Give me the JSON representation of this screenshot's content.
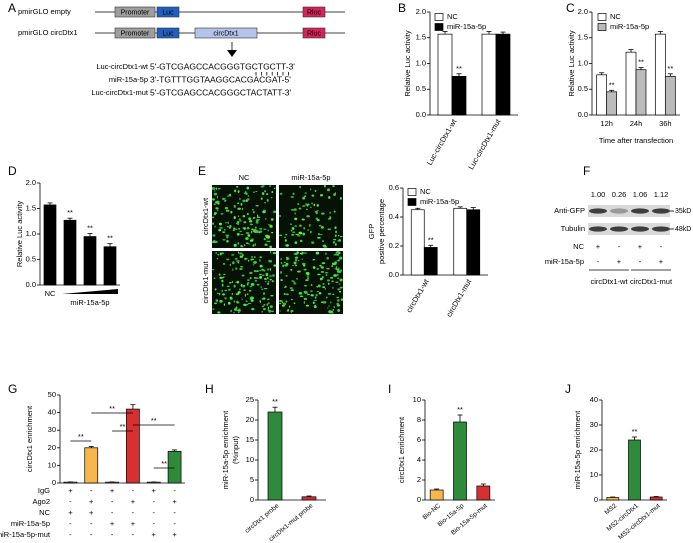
{
  "construct_panel": {
    "label": "A",
    "rows": [
      {
        "name": "pmirGLO empty",
        "elements": [
          "Promoter",
          "Luc",
          "Rluc"
        ]
      },
      {
        "name": "pmirGLO circDtx1",
        "elements": [
          "Promoter",
          "Luc",
          "circDtx1",
          "Rluc"
        ]
      }
    ],
    "sequences": [
      {
        "name": "Luc-circDtx1-wt",
        "seq": "5'-GTCGAGCCACGGGTGCTGCTT-3'"
      },
      {
        "name": "miR-15a-5p",
        "seq": "3'-TGTTTGGTAAGGCACGACGAT-5'"
      },
      {
        "name": "Luc-circDtx1-mut",
        "seq": "5'-GTCGAGCCACGGGCTACTATT-3'"
      }
    ]
  },
  "imaging_panel": {
    "label": "E",
    "columns": [
      "NC",
      "miR-15a-5p"
    ],
    "rows": [
      "circDtx1-wt",
      "circDtx1-mut"
    ]
  },
  "blot_panel": {
    "label": "F",
    "values": [
      "1.00",
      "0.26",
      "1.06",
      "1.12"
    ],
    "bands": [
      {
        "name": "Anti-GFP",
        "size": "35kD"
      },
      {
        "name": "Tubulin",
        "size": "48kD"
      }
    ],
    "conditions": [
      {
        "name": "NC",
        "signs": [
          "+",
          "-",
          "+",
          "-"
        ]
      },
      {
        "name": "miR-15a-5p",
        "signs": [
          "-",
          "+",
          "-",
          "+"
        ]
      }
    ],
    "groups": [
      "circDtx1-wt",
      "circDtx1-mut"
    ]
  },
  "chart_data": [
    {
      "type": "bar",
      "label": "B",
      "ylabel": "Relative Luc activity",
      "categories": [
        "Luc-circDtx1-wt",
        "Luc-circDtx1-mut"
      ],
      "series": [
        {
          "name": "NC",
          "color": "#ffffff",
          "values": [
            1.57,
            1.57
          ],
          "errors": [
            0.05,
            0.05
          ]
        },
        {
          "name": "miR-15a-5p",
          "color": "#000000",
          "values": [
            0.75,
            1.57
          ],
          "errors": [
            0.05,
            0.04
          ],
          "annotations": [
            "**",
            null
          ]
        }
      ],
      "ylim": [
        0,
        2
      ],
      "yticks": [
        {
          "value": 0,
          "label": "0.0"
        },
        0.5,
        {
          "value": 1,
          "label": "1.0"
        },
        1.5,
        {
          "value": 2,
          "label": "2.0"
        }
      ]
    },
    {
      "type": "bar",
      "label": "C",
      "ylabel": "Relative Luc activity",
      "xlabel": "Time after transfection",
      "categories": [
        "12h",
        "24h",
        "36h"
      ],
      "series": [
        {
          "name": "NC",
          "color": "#ffffff",
          "values": [
            0.78,
            1.22,
            1.57
          ],
          "errors": [
            0.04,
            0.05,
            0.05
          ]
        },
        {
          "name": "miR-15a-5p",
          "color": "#bbbbbb",
          "values": [
            0.45,
            0.88,
            0.75
          ],
          "errors": [
            0.03,
            0.04,
            0.05
          ],
          "annotations": [
            "**",
            "**",
            "**"
          ]
        }
      ],
      "ylim": [
        0,
        2
      ],
      "yticks": [
        {
          "value": 0,
          "label": "0.0"
        },
        0.5,
        {
          "value": 1,
          "label": "1.0"
        },
        1.5,
        {
          "value": 2,
          "label": "2.0"
        }
      ]
    },
    {
      "type": "bar",
      "label": "D",
      "ylabel": "Relative Luc activity",
      "xlabel": "miR-15a-5p",
      "categories": [
        "NC",
        null,
        null,
        null
      ],
      "color": "#000000",
      "values": [
        1.57,
        1.27,
        0.95,
        0.75
      ],
      "errors": [
        0.04,
        0.04,
        0.06,
        0.06
      ],
      "annotations": [
        null,
        "**",
        "**",
        "**"
      ],
      "ylim": [
        0,
        2
      ],
      "yticks": [
        {
          "value": 0,
          "label": "0.0"
        },
        0.5,
        {
          "value": 1,
          "label": "1.0"
        },
        1.5,
        {
          "value": 2,
          "label": "2.0"
        }
      ]
    },
    {
      "type": "bar",
      "ylabel": [
        "GFP",
        "positive percentage"
      ],
      "categories": [
        "circDtx1-wt",
        "circDtx1-mut"
      ],
      "series": [
        {
          "name": "NC",
          "color": "#ffffff",
          "values": [
            0.45,
            0.46
          ],
          "errors": [
            0.01,
            0.01
          ]
        },
        {
          "name": "miR-15a-5p",
          "color": "#000000",
          "values": [
            0.19,
            0.45
          ],
          "errors": [
            0.015,
            0.015
          ],
          "annotations": [
            "**",
            null
          ]
        }
      ],
      "ylim": [
        0,
        0.6
      ],
      "yticks": [
        {
          "value": 0,
          "label": "0.0"
        },
        0.2,
        0.4,
        0.6
      ]
    },
    {
      "type": "bar",
      "label": "G",
      "ylabel": "circDtx1 enrichment",
      "values": [
        0.5,
        20,
        0.5,
        42,
        0.5,
        18
      ],
      "errors": [
        0.1,
        0.8,
        0.1,
        2.5,
        0.1,
        0.8
      ],
      "colors": [
        "#e8e8e8",
        "#f6b84c",
        "#e8e8e8",
        "#d63031",
        "#e8e8e8",
        "#2e8b3a"
      ],
      "brackets": [
        "**",
        "**",
        "**",
        "**",
        "**"
      ],
      "conditions": [
        {
          "name": "IgG",
          "signs": [
            "+",
            "-",
            "+",
            "-",
            "+",
            "-"
          ]
        },
        {
          "name": "Ago2",
          "signs": [
            "-",
            "+",
            "-",
            "+",
            "-",
            "+"
          ]
        },
        {
          "name": "NC",
          "signs": [
            "+",
            "+",
            "-",
            "-",
            "-",
            "-"
          ]
        },
        {
          "name": "miR-15a-5p",
          "signs": [
            "-",
            "-",
            "+",
            "+",
            "-",
            "-"
          ]
        },
        {
          "name": "miR-15a-5p-mut",
          "signs": [
            "-",
            "-",
            "-",
            "-",
            "+",
            "+"
          ]
        }
      ],
      "ylim": [
        0,
        50
      ],
      "yticks": [
        0,
        10,
        20,
        30,
        40,
        50
      ]
    },
    {
      "type": "bar",
      "label": "H",
      "ylabel": [
        "miR-15a-5p enrichment",
        "(%input)"
      ],
      "categories": [
        "circDtx1 probe",
        "circDtx1-mut probe"
      ],
      "values": [
        22,
        0.8
      ],
      "errors": [
        1.2,
        0.2
      ],
      "annotations": [
        "**",
        null
      ],
      "colors": [
        "#2e8b3a",
        "#d63031"
      ],
      "ylim": [
        0,
        25
      ],
      "yticks": [
        0,
        5,
        10,
        15,
        20,
        25
      ]
    },
    {
      "type": "bar",
      "label": "I",
      "ylabel": "circDtx1 enrichment",
      "categories": [
        "Bio-NC",
        "Bio-15a-5p",
        "Bio-15a-5p-mut"
      ],
      "values": [
        1,
        7.8,
        1.4
      ],
      "errors": [
        0.1,
        0.7,
        0.2
      ],
      "annotations": [
        null,
        "**",
        null
      ],
      "colors": [
        "#f6b84c",
        "#2e8b3a",
        "#d63031"
      ],
      "ylim": [
        0,
        10
      ],
      "yticks": [
        0,
        2,
        4,
        6,
        8,
        10
      ]
    },
    {
      "type": "bar",
      "label": "J",
      "ylabel": "miR-15a-5p enrichment",
      "categories": [
        "MS2",
        "MS2-circDtx1",
        "MS2-circDtx1-mut"
      ],
      "values": [
        1,
        24,
        1.2
      ],
      "errors": [
        0.2,
        1.2,
        0.2
      ],
      "annotations": [
        null,
        "**",
        null
      ],
      "colors": [
        "#f6b84c",
        "#2e8b3a",
        "#d63031"
      ],
      "ylim": [
        0,
        40
      ],
      "yticks": [
        0,
        10,
        20,
        30,
        40
      ]
    }
  ]
}
